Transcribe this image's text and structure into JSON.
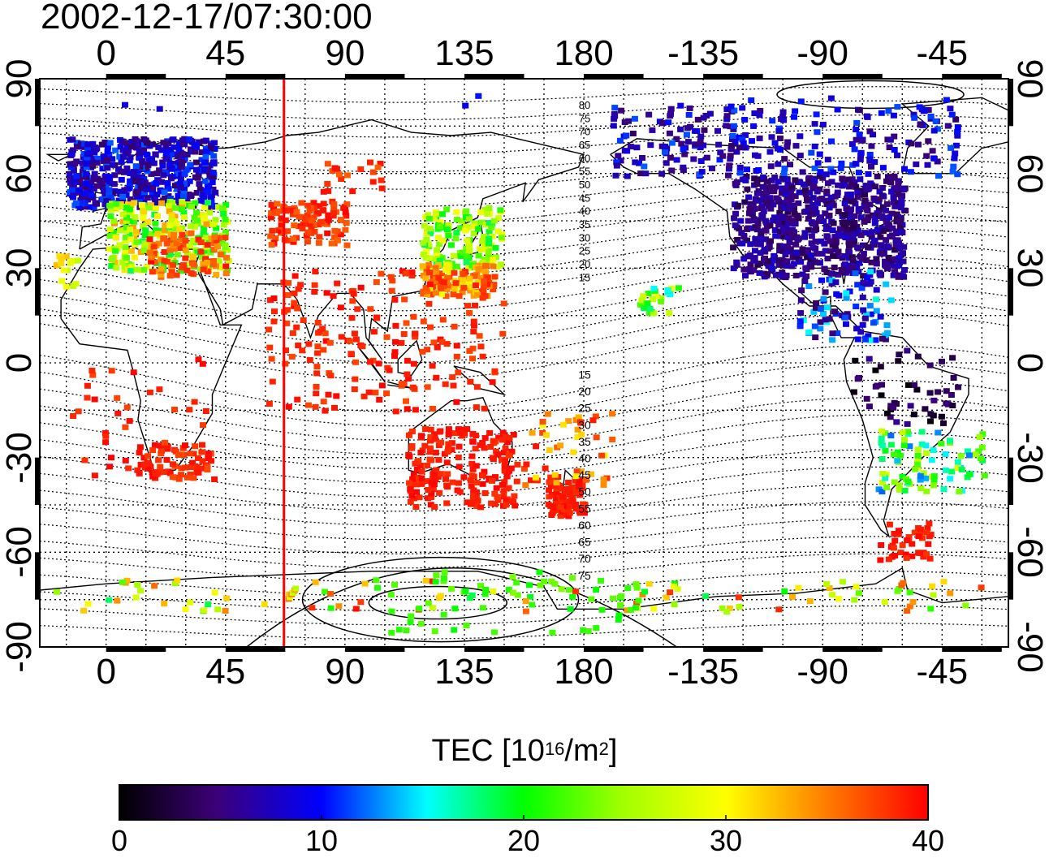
{
  "timestamp": "2002-12-17/07:30:00",
  "colors": {
    "local_time_line": "#ff0000",
    "colormap": [
      "#000000",
      "#4b0082",
      "#0000ff",
      "#00ffff",
      "#00ff00",
      "#ffff00",
      "#ff8000",
      "#ff0000"
    ]
  },
  "x_axis": {
    "top_ticks": [
      "0",
      "45",
      "90",
      "135",
      "180",
      "-135",
      "-90",
      "-45"
    ],
    "bottom_ticks": [
      "0",
      "45",
      "90",
      "135",
      "180",
      "-135",
      "-90",
      "-45"
    ],
    "tick_longitudes": [
      0,
      45,
      90,
      135,
      180,
      225,
      270,
      315
    ],
    "range": [
      -25,
      340
    ]
  },
  "y_axis": {
    "left_ticks": [
      "90",
      "60",
      "30",
      "0",
      "-30",
      "-60",
      "-90"
    ],
    "right_ticks": [
      "90",
      "60",
      "30",
      "0",
      "-30",
      "-60",
      "-90"
    ],
    "tick_latitudes": [
      90,
      60,
      30,
      0,
      -30,
      -60,
      -90
    ]
  },
  "contour_labels": {
    "north": [
      "80",
      "75",
      "70",
      "65",
      "60",
      "55",
      "50",
      "45",
      "40",
      "35",
      "30",
      "25",
      "20",
      "15"
    ],
    "south": [
      "15",
      "20",
      "25",
      "30",
      "35",
      "40",
      "45",
      "50",
      "55",
      "60",
      "65",
      "70",
      "75"
    ]
  },
  "colorbar": {
    "title_main": "TEC  [10",
    "title_exp": "16",
    "title_mid": "/m",
    "title_exp2": "2",
    "title_end": "]",
    "ticks": [
      "0",
      "10",
      "20",
      "30",
      "40"
    ],
    "min": 0,
    "max": 40
  },
  "local_time_line_lon": 67
}
